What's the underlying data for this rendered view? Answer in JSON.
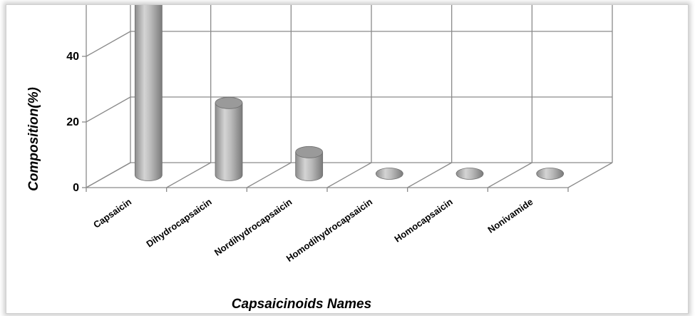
{
  "chart_data": {
    "type": "bar",
    "title": "",
    "xlabel": "Capsaicinoids Names",
    "ylabel": "Composition(%)",
    "ylim": [
      0,
      80
    ],
    "yticks": [
      "0",
      "20",
      "40",
      "60",
      "80"
    ],
    "categories": [
      "Capsaicin",
      "Dihydrocapsaicin",
      "Nordihydrocapsaicin",
      "Homodihydrocapsaicin",
      "Homocapsaicin",
      "Nonivamide"
    ],
    "values": [
      69,
      22,
      7,
      1,
      1,
      1
    ],
    "grid": true,
    "bar_color": "#a9a9a9",
    "legend": "none"
  }
}
